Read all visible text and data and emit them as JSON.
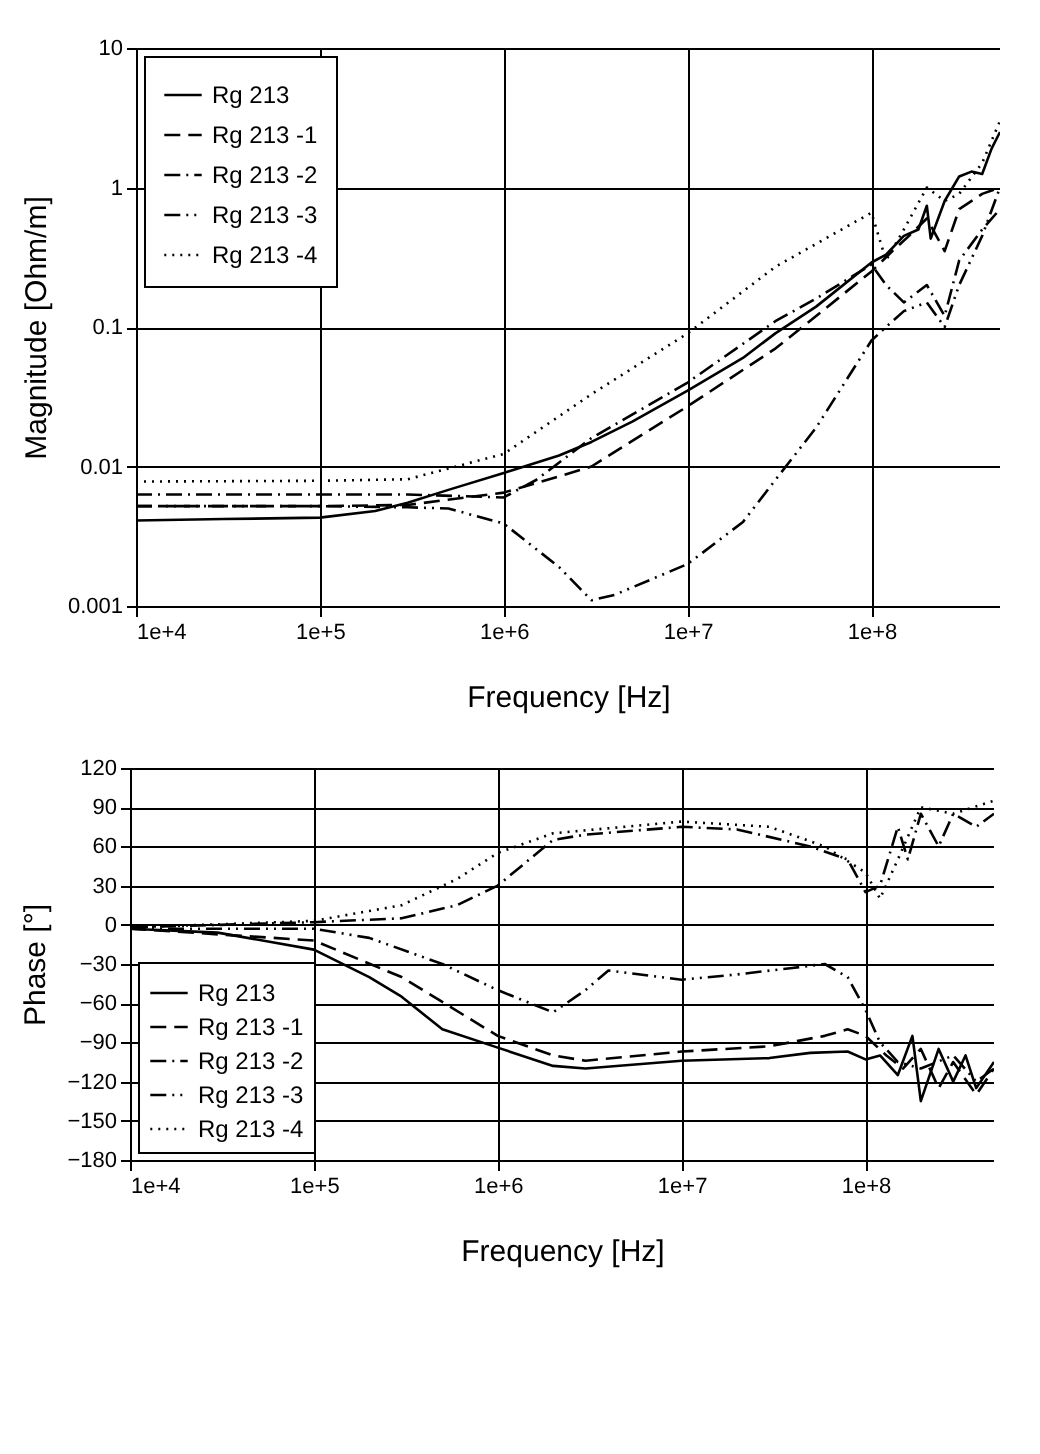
{
  "chart_data": [
    {
      "type": "line",
      "xlabel": "Frequency [Hz]",
      "ylabel": "Magnitude [Ohm/m]",
      "log": "xy",
      "grid": true,
      "legend": "top left",
      "marker": "none",
      "xlim": [
        10000,
        500000000
      ],
      "ylim": [
        0.001,
        10
      ],
      "xticks": [
        {
          "value": 10000,
          "label": "1e+4"
        },
        {
          "value": 100000,
          "label": "1e+5"
        },
        {
          "value": 1000000,
          "label": "1e+6"
        },
        {
          "value": 10000000,
          "label": "1e+7"
        },
        {
          "value": 100000000,
          "label": "1e+8"
        }
      ],
      "yticks": [
        0.001,
        0.01,
        0.1,
        1,
        10
      ],
      "series": [
        {
          "name": "Rg 213",
          "color": "#000000",
          "line_style": "solid",
          "x": [
            10000,
            30000,
            100000,
            200000,
            300000,
            500000,
            1000000,
            2000000,
            3000000,
            5000000,
            10000000,
            20000000,
            30000000,
            50000000,
            100000000,
            120000000,
            150000000,
            180000000,
            200000000,
            210000000,
            250000000,
            300000000,
            350000000,
            400000000,
            450000000,
            500000000
          ],
          "values": [
            0.0041,
            0.0042,
            0.0043,
            0.0048,
            0.0055,
            0.0068,
            0.009,
            0.012,
            0.015,
            0.021,
            0.035,
            0.06,
            0.09,
            0.14,
            0.29,
            0.33,
            0.45,
            0.5,
            0.74,
            0.43,
            0.8,
            1.2,
            1.3,
            1.25,
            1.9,
            2.5
          ]
        },
        {
          "name": "Rg 213 -1",
          "color": "#000000",
          "line_style": "dashed",
          "x": [
            10000,
            100000,
            300000,
            1000000,
            2000000,
            3000000,
            10000000,
            30000000,
            50000000,
            100000000,
            130000000,
            160000000,
            200000000,
            250000000,
            300000000,
            400000000,
            500000000
          ],
          "values": [
            0.0052,
            0.0052,
            0.0053,
            0.0065,
            0.0085,
            0.01,
            0.027,
            0.07,
            0.12,
            0.25,
            0.35,
            0.45,
            0.6,
            0.35,
            0.7,
            0.9,
            1.0
          ]
        },
        {
          "name": "Rg 213 -2",
          "color": "#000000",
          "line_style": "dashdot",
          "x": [
            10000,
            100000,
            300000,
            1000000,
            1500000,
            3000000,
            10000000,
            30000000,
            50000000,
            100000000,
            120000000,
            150000000,
            200000000,
            250000000,
            300000000,
            400000000,
            500000000
          ],
          "values": [
            0.0063,
            0.0063,
            0.0063,
            0.006,
            0.008,
            0.016,
            0.04,
            0.11,
            0.16,
            0.28,
            0.2,
            0.15,
            0.2,
            0.12,
            0.3,
            0.5,
            0.7
          ]
        },
        {
          "name": "Rg 213 -3",
          "color": "#000000",
          "line_style": "dashdotdot",
          "x": [
            10000,
            100000,
            300000,
            500000,
            1000000,
            2000000,
            3000000,
            4000000,
            10000000,
            20000000,
            30000000,
            50000000,
            100000000,
            120000000,
            150000000,
            200000000,
            250000000,
            300000000,
            400000000,
            500000000
          ],
          "values": [
            0.0052,
            0.0052,
            0.0051,
            0.005,
            0.0039,
            0.0019,
            0.0011,
            0.0012,
            0.002,
            0.004,
            0.008,
            0.019,
            0.08,
            0.1,
            0.13,
            0.15,
            0.1,
            0.2,
            0.45,
            1.0
          ]
        },
        {
          "name": "Rg 213 -4",
          "color": "#000000",
          "line_style": "dotted",
          "x": [
            10000,
            100000,
            300000,
            1000000,
            3000000,
            10000000,
            30000000,
            100000000,
            120000000,
            150000000,
            200000000,
            250000000,
            300000000,
            400000000,
            500000000
          ],
          "values": [
            0.0078,
            0.0079,
            0.0081,
            0.0123,
            0.033,
            0.09,
            0.27,
            0.66,
            0.3,
            0.5,
            1.0,
            0.8,
            0.9,
            1.5,
            3.0
          ]
        }
      ]
    },
    {
      "type": "line",
      "xlabel": "Frequency [Hz]",
      "ylabel": "Phase [°]",
      "log": "x",
      "grid": true,
      "legend": "bottom left",
      "marker": "none",
      "xlim": [
        10000,
        500000000
      ],
      "ylim": [
        -180,
        120
      ],
      "xticks": [
        {
          "value": 10000,
          "label": "1e+4"
        },
        {
          "value": 100000,
          "label": "1e+5"
        },
        {
          "value": 1000000,
          "label": "1e+6"
        },
        {
          "value": 10000000,
          "label": "1e+7"
        },
        {
          "value": 100000000,
          "label": "1e+8"
        }
      ],
      "yticks": [
        -180,
        -150,
        -120,
        -90,
        -60,
        -30,
        0,
        30,
        60,
        90,
        120
      ],
      "series": [
        {
          "name": "Rg 213",
          "color": "#000000",
          "line_style": "solid",
          "x": [
            10000,
            30000,
            100000,
            200000,
            300000,
            500000,
            1000000,
            2000000,
            3000000,
            10000000,
            30000000,
            50000000,
            80000000,
            100000000,
            120000000,
            150000000,
            180000000,
            200000000,
            250000000,
            300000000,
            350000000,
            400000000,
            500000000
          ],
          "values": [
            -3,
            -6,
            -19,
            -40,
            -55,
            -80,
            -94,
            -108,
            -110,
            -104,
            -102,
            -98,
            -97,
            -103,
            -100,
            -115,
            -85,
            -135,
            -95,
            -120,
            -100,
            -125,
            -105
          ]
        },
        {
          "name": "Rg 213 -1",
          "color": "#000000",
          "line_style": "dashed",
          "x": [
            10000,
            100000,
            300000,
            1000000,
            2000000,
            3000000,
            10000000,
            30000000,
            60000000,
            80000000,
            100000000,
            130000000,
            160000000,
            200000000,
            250000000,
            300000000,
            400000000,
            500000000
          ],
          "values": [
            -3,
            -12,
            -40,
            -85,
            -100,
            -104,
            -97,
            -93,
            -85,
            -80,
            -85,
            -100,
            -110,
            -95,
            -125,
            -105,
            -130,
            -110
          ]
        },
        {
          "name": "Rg 213 -2",
          "color": "#000000",
          "line_style": "dashdot",
          "x": [
            10000,
            100000,
            300000,
            600000,
            1000000,
            2000000,
            3000000,
            10000000,
            20000000,
            50000000,
            80000000,
            100000000,
            120000000,
            150000000,
            170000000,
            200000000,
            250000000,
            300000000,
            400000000,
            500000000
          ],
          "values": [
            -2,
            2,
            5,
            15,
            30,
            65,
            69,
            75,
            73,
            60,
            50,
            25,
            30,
            75,
            50,
            85,
            60,
            85,
            75,
            85
          ]
        },
        {
          "name": "Rg 213 -3",
          "color": "#000000",
          "line_style": "dashdotdot",
          "x": [
            10000,
            100000,
            200000,
            500000,
            1000000,
            2000000,
            3000000,
            4000000,
            10000000,
            20000000,
            40000000,
            60000000,
            80000000,
            100000000,
            120000000,
            150000000,
            200000000,
            300000000,
            400000000,
            500000000
          ],
          "values": [
            -3,
            -3,
            -10,
            -30,
            -50,
            -67,
            -50,
            -35,
            -42,
            -38,
            -33,
            -30,
            -40,
            -65,
            -90,
            -105,
            -110,
            -100,
            -120,
            -110
          ]
        },
        {
          "name": "Rg 213 -4",
          "color": "#000000",
          "line_style": "dotted",
          "x": [
            10000,
            100000,
            300000,
            600000,
            1000000,
            2000000,
            10000000,
            30000000,
            60000000,
            100000000,
            120000000,
            150000000,
            200000000,
            300000000,
            500000000
          ],
          "values": [
            -2,
            3,
            15,
            35,
            55,
            70,
            79,
            75,
            60,
            40,
            20,
            50,
            90,
            85,
            95
          ]
        }
      ]
    }
  ]
}
